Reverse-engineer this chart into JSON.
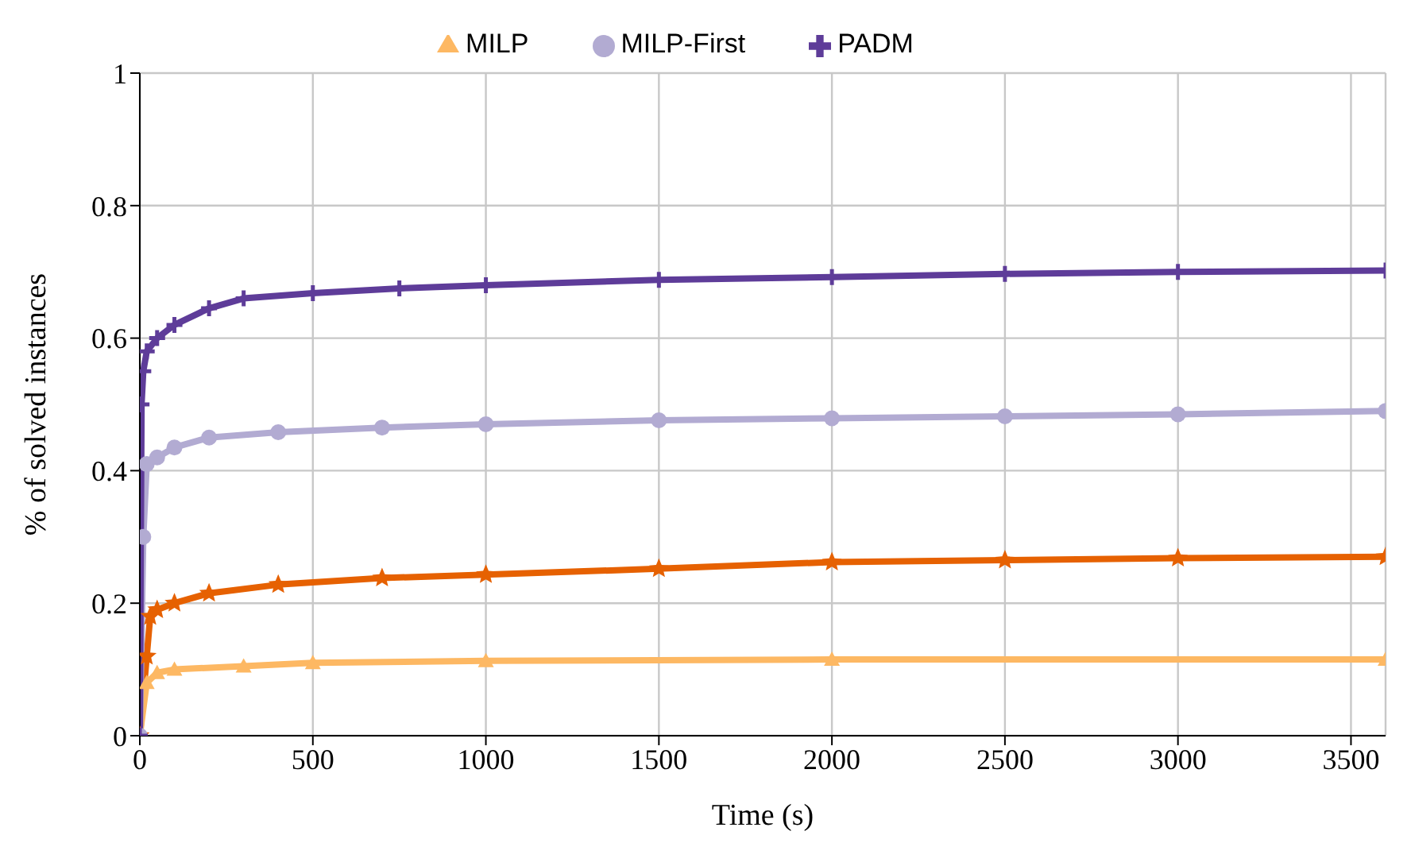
{
  "chart_data": {
    "type": "line",
    "xlabel": "Time (s)",
    "ylabel": "% of solved instances",
    "xlim": [
      0,
      3600
    ],
    "xticks": [
      0,
      500,
      1000,
      1500,
      2000,
      2500,
      3000,
      3500
    ],
    "ylim": [
      0,
      1
    ],
    "yticks": [
      0,
      0.2,
      0.4,
      0.6,
      0.8,
      1
    ],
    "grid": true,
    "legend": "top",
    "line_style": "solid",
    "series": [
      {
        "color": "#e66101",
        "marker": "star",
        "x": [
          0,
          20,
          30,
          50,
          100,
          200,
          400,
          700,
          1000,
          1500,
          2000,
          2500,
          3000,
          3600
        ],
        "values": [
          0,
          0.12,
          0.18,
          0.19,
          0.2,
          0.215,
          0.228,
          0.238,
          0.243,
          0.252,
          0.262,
          0.265,
          0.268,
          0.27
        ]
      },
      {
        "name": "MILP",
        "color": "#fdb863",
        "marker": "triangle",
        "x": [
          0,
          20,
          50,
          100,
          300,
          500,
          1000,
          2000,
          3600
        ],
        "values": [
          0,
          0.08,
          0.095,
          0.1,
          0.105,
          0.11,
          0.113,
          0.115,
          0.115
        ]
      },
      {
        "name": "MILP-First",
        "color": "#b2abd2",
        "marker": "circle",
        "x": [
          0,
          10,
          20,
          50,
          100,
          200,
          400,
          700,
          1000,
          1500,
          2000,
          2500,
          3000,
          3600
        ],
        "values": [
          0,
          0.3,
          0.41,
          0.42,
          0.435,
          0.45,
          0.458,
          0.465,
          0.47,
          0.476,
          0.479,
          0.482,
          0.485,
          0.49
        ]
      },
      {
        "name": "PADM",
        "color": "#5e3c99",
        "marker": "cross",
        "x": [
          0,
          5,
          10,
          20,
          50,
          100,
          200,
          300,
          500,
          750,
          1000,
          1500,
          2000,
          2500,
          3000,
          3600
        ],
        "values": [
          0,
          0.5,
          0.55,
          0.58,
          0.6,
          0.62,
          0.645,
          0.66,
          0.668,
          0.675,
          0.68,
          0.688,
          0.692,
          0.697,
          0.7,
          0.702
        ]
      }
    ]
  }
}
